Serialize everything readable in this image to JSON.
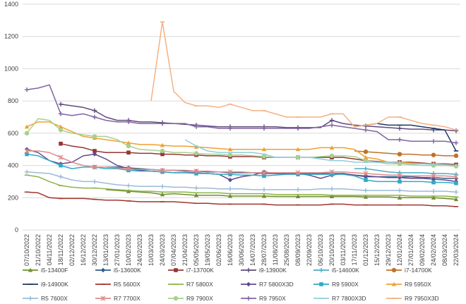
{
  "chart_data": {
    "type": "line",
    "title": "",
    "xlabel": "",
    "ylabel": "",
    "ylim": [
      0,
      1400
    ],
    "yticks": [
      0,
      200,
      400,
      600,
      800,
      1000,
      1200,
      1400
    ],
    "grid": true,
    "legend_position": "bottom",
    "x": [
      "07/10/2022",
      "21/10/2022",
      "04/11/2022",
      "18/11/2022",
      "02/12/2022",
      "16/12/2022",
      "30/12/2022",
      "13/01/2023",
      "27/01/2023",
      "10/02/2023",
      "24/02/2023",
      "10/03/2023",
      "24/03/2023",
      "07/04/2023",
      "21/04/2023",
      "05/05/2023",
      "19/05/2023",
      "02/06/2023",
      "16/06/2023",
      "30/06/2023",
      "14/07/2023",
      "28/07/2023",
      "11/08/2023",
      "25/08/2023",
      "08/09/2023",
      "22/09/2023",
      "06/10/2023",
      "20/10/2023",
      "03/11/2023",
      "17/11/2023",
      "01/12/2023",
      "15/12/2023",
      "29/12/2023",
      "12/01/2024",
      "27/01/2024",
      "09/02/2024",
      "24/02/2024",
      "08/03/2024",
      "22/03/2024"
    ],
    "series": [
      {
        "name": "i5-13400F",
        "color": "#6f8f2e",
        "marker": "triangle",
        "values": [
          null,
          null,
          null,
          null,
          null,
          null,
          null,
          250,
          245,
          240,
          235,
          230,
          220,
          225,
          220,
          215,
          215,
          215,
          210,
          210,
          210,
          210,
          208,
          208,
          208,
          208,
          208,
          208,
          208,
          208,
          205,
          205,
          205,
          200,
          200,
          200,
          200,
          195,
          190
        ]
      },
      {
        "name": "i5-13600K",
        "color": "#2e5e8c",
        "marker": "diamond",
        "values": [
          null,
          null,
          null,
          null,
          null,
          null,
          null,
          390,
          390,
          385,
          380,
          375,
          370,
          370,
          365,
          365,
          360,
          360,
          355,
          355,
          355,
          350,
          350,
          350,
          350,
          350,
          350,
          350,
          350,
          340,
          335,
          330,
          330,
          330,
          330,
          325,
          325,
          320,
          320
        ]
      },
      {
        "name": "i7-13700K",
        "color": "#943634",
        "marker": "square",
        "values": [
          null,
          null,
          null,
          535,
          520,
          510,
          490,
          480,
          480,
          480,
          475,
          475,
          470,
          470,
          465,
          465,
          460,
          460,
          455,
          455,
          455,
          450,
          450,
          450,
          450,
          450,
          450,
          450,
          450,
          440,
          430,
          425,
          420,
          420,
          420,
          415,
          410,
          410,
          405
        ]
      },
      {
        "name": "i9-13900K",
        "color": "#604a7b",
        "marker": "cross",
        "values": [
          null,
          null,
          null,
          780,
          770,
          760,
          740,
          700,
          680,
          680,
          670,
          670,
          665,
          660,
          655,
          650,
          645,
          640,
          640,
          640,
          640,
          640,
          640,
          635,
          635,
          635,
          635,
          680,
          660,
          650,
          645,
          640,
          635,
          630,
          625,
          625,
          620,
          620,
          615
        ]
      },
      {
        "name": "i5-14600K",
        "color": "#4bacc6",
        "marker": "cross",
        "values": [
          null,
          null,
          null,
          null,
          null,
          null,
          null,
          null,
          null,
          null,
          null,
          null,
          null,
          null,
          null,
          null,
          null,
          null,
          null,
          null,
          null,
          null,
          null,
          null,
          null,
          null,
          null,
          null,
          null,
          380,
          380,
          370,
          360,
          355,
          355,
          355,
          350,
          350,
          345
        ]
      },
      {
        "name": "i7-14700K",
        "color": "#c0722a",
        "marker": "circle",
        "values": [
          null,
          null,
          null,
          null,
          null,
          null,
          null,
          null,
          null,
          null,
          null,
          null,
          null,
          null,
          null,
          null,
          null,
          null,
          null,
          null,
          null,
          null,
          null,
          null,
          null,
          null,
          null,
          null,
          null,
          490,
          485,
          480,
          475,
          470,
          470,
          465,
          465,
          460,
          460
        ]
      },
      {
        "name": "i9-14900K",
        "color": "#1f3864",
        "marker": "dash",
        "values": [
          null,
          null,
          null,
          null,
          null,
          null,
          null,
          null,
          null,
          null,
          null,
          null,
          null,
          null,
          null,
          null,
          null,
          null,
          null,
          null,
          null,
          null,
          null,
          null,
          null,
          null,
          null,
          null,
          null,
          640,
          650,
          660,
          650,
          650,
          650,
          640,
          630,
          620,
          490
        ]
      },
      {
        "name": "R5 5600X",
        "color": "#a0362e",
        "marker": "dash",
        "values": [
          235,
          230,
          200,
          195,
          195,
          195,
          190,
          185,
          185,
          180,
          175,
          175,
          175,
          175,
          170,
          165,
          165,
          160,
          160,
          160,
          160,
          160,
          155,
          155,
          155,
          155,
          155,
          160,
          160,
          155,
          155,
          155,
          155,
          155,
          155,
          155,
          150,
          150,
          145
        ]
      },
      {
        "name": "R7 5800X",
        "color": "#8db34a",
        "marker": "dash",
        "values": [
          340,
          330,
          300,
          275,
          265,
          260,
          260,
          255,
          250,
          245,
          240,
          240,
          235,
          235,
          235,
          230,
          230,
          230,
          225,
          225,
          225,
          225,
          220,
          220,
          220,
          220,
          220,
          215,
          215,
          215,
          215,
          215,
          215,
          215,
          210,
          210,
          210,
          210,
          205
        ]
      },
      {
        "name": "R7 5800X3D",
        "color": "#604a8c",
        "marker": "diamond",
        "values": [
          500,
          480,
          430,
          410,
          420,
          460,
          470,
          440,
          400,
          380,
          370,
          365,
          360,
          355,
          355,
          355,
          350,
          345,
          310,
          330,
          340,
          360,
          350,
          350,
          350,
          340,
          320,
          340,
          350,
          340,
          330,
          330,
          325,
          325,
          320,
          320,
          315,
          310,
          300
        ]
      },
      {
        "name": "R9 5900X",
        "color": "#31a9c5",
        "marker": "square",
        "values": [
          470,
          460,
          430,
          400,
          380,
          390,
          390,
          380,
          380,
          370,
          365,
          365,
          360,
          355,
          355,
          350,
          350,
          345,
          345,
          340,
          340,
          335,
          340,
          345,
          345,
          345,
          345,
          345,
          345,
          335,
          310,
          300,
          300,
          300,
          300,
          300,
          295,
          295,
          290
        ]
      },
      {
        "name": "R9 5950X",
        "color": "#f0a030",
        "marker": "triangle",
        "values": [
          640,
          670,
          670,
          640,
          610,
          580,
          570,
          560,
          550,
          540,
          530,
          530,
          525,
          520,
          520,
          515,
          510,
          505,
          500,
          500,
          500,
          500,
          500,
          500,
          500,
          500,
          510,
          510,
          510,
          500,
          450,
          440,
          420,
          420,
          415,
          410,
          410,
          405,
          400
        ]
      },
      {
        "name": "R5 7600X",
        "color": "#9bbbd9",
        "marker": "cross",
        "values": [
          360,
          355,
          350,
          330,
          310,
          300,
          300,
          290,
          280,
          275,
          270,
          270,
          270,
          265,
          265,
          260,
          260,
          255,
          255,
          255,
          250,
          250,
          250,
          250,
          250,
          250,
          255,
          255,
          255,
          250,
          245,
          245,
          245,
          245,
          240,
          240,
          240,
          240,
          235
        ]
      },
      {
        "name": "R7 7700X",
        "color": "#e08a8a",
        "marker": "asterisk",
        "values": [
          490,
          490,
          480,
          450,
          420,
          400,
          390,
          390,
          385,
          380,
          375,
          375,
          370,
          370,
          370,
          365,
          365,
          360,
          360,
          360,
          355,
          355,
          355,
          355,
          355,
          355,
          355,
          360,
          360,
          355,
          350,
          345,
          340,
          340,
          335,
          335,
          335,
          335,
          330
        ]
      },
      {
        "name": "R9 7900X",
        "color": "#a8d08d",
        "marker": "circle",
        "values": [
          600,
          690,
          680,
          620,
          600,
          590,
          580,
          580,
          560,
          520,
          500,
          495,
          490,
          480,
          480,
          475,
          470,
          470,
          465,
          465,
          460,
          455,
          450,
          450,
          450,
          450,
          455,
          460,
          460,
          455,
          430,
          420,
          410,
          410,
          405,
          400,
          400,
          400,
          395
        ]
      },
      {
        "name": "R9 7950X",
        "color": "#8064a2",
        "marker": "cross",
        "values": [
          870,
          880,
          900,
          720,
          710,
          720,
          700,
          680,
          670,
          670,
          660,
          660,
          660,
          660,
          660,
          640,
          640,
          630,
          630,
          630,
          630,
          630,
          630,
          630,
          630,
          630,
          640,
          650,
          640,
          630,
          620,
          610,
          560,
          560,
          550,
          550,
          550,
          550,
          540
        ]
      },
      {
        "name": "R7 7800X3D",
        "color": "#92cddc",
        "marker": "dash",
        "values": [
          null,
          null,
          null,
          null,
          null,
          null,
          null,
          null,
          null,
          null,
          null,
          null,
          null,
          null,
          560,
          520,
          490,
          480,
          480,
          480,
          480,
          470,
          450,
          450,
          450,
          450,
          440,
          430,
          430,
          420,
          420,
          420,
          420,
          415,
          410,
          410,
          405,
          405,
          400
        ]
      },
      {
        "name": "R9 7950X3D",
        "color": "#f4b183",
        "marker": "dash",
        "values": [
          null,
          null,
          null,
          null,
          null,
          null,
          null,
          null,
          null,
          null,
          null,
          800,
          1290,
          860,
          790,
          770,
          770,
          760,
          780,
          760,
          740,
          740,
          720,
          700,
          700,
          700,
          700,
          720,
          720,
          640,
          650,
          660,
          700,
          700,
          680,
          660,
          650,
          640,
          620
        ]
      }
    ]
  }
}
